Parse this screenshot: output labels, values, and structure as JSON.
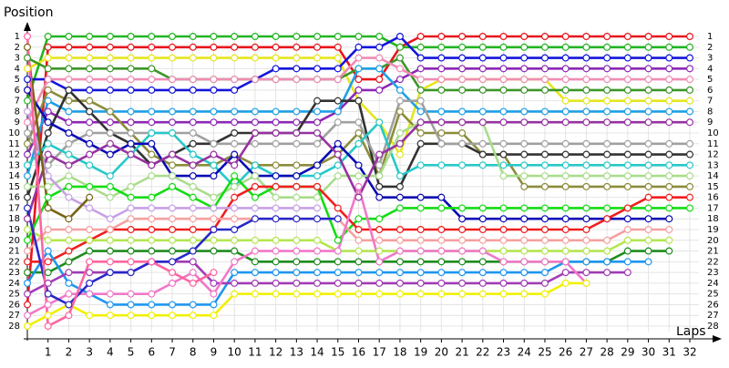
{
  "chart_data": {
    "type": "lap-chart",
    "y_label": "Position",
    "x_label": "Laps",
    "x": [
      0,
      1,
      2,
      3,
      4,
      5,
      6,
      7,
      8,
      9,
      10,
      11,
      12,
      13,
      14,
      15,
      16,
      17,
      18,
      19,
      20,
      21,
      22,
      23,
      24,
      25,
      26,
      27,
      28,
      29,
      30,
      31,
      32
    ],
    "xlim": [
      0,
      32
    ],
    "xticks": [
      1,
      2,
      3,
      4,
      5,
      6,
      7,
      8,
      9,
      10,
      11,
      12,
      13,
      14,
      15,
      16,
      17,
      18,
      19,
      20,
      21,
      22,
      23,
      24,
      25,
      26,
      27,
      28,
      29,
      30,
      31,
      32
    ],
    "ylim": [
      1,
      28
    ],
    "yticks": [
      1,
      2,
      3,
      4,
      5,
      6,
      7,
      8,
      9,
      10,
      11,
      12,
      13,
      14,
      15,
      16,
      17,
      18,
      19,
      20,
      21,
      22,
      23,
      24,
      25,
      26,
      27,
      28
    ],
    "y_inverted": true,
    "grid": true,
    "series": [
      {
        "color": "#e8141c",
        "values": [
          26,
          2,
          2,
          2,
          2,
          2,
          2,
          2,
          2,
          2,
          2,
          2,
          2,
          2,
          2,
          2,
          5,
          5,
          2,
          1,
          1,
          1,
          1,
          1,
          1,
          1,
          1,
          1,
          1,
          1,
          1,
          1,
          1
        ]
      },
      {
        "color": "#22b422",
        "values": [
          7,
          1,
          1,
          1,
          1,
          1,
          1,
          1,
          1,
          1,
          1,
          1,
          1,
          1,
          1,
          1,
          1,
          1,
          2,
          2,
          2,
          2,
          2,
          2,
          2,
          2,
          2,
          2,
          2,
          2,
          2,
          2,
          2
        ]
      },
      {
        "color": "#e6e61e",
        "values": [
          4,
          3,
          3,
          3,
          3,
          3,
          3,
          3,
          3,
          3,
          3,
          3,
          3,
          3,
          3,
          3,
          7,
          9,
          12,
          6,
          5,
          5,
          5,
          5,
          5,
          5,
          7,
          7,
          7,
          7,
          7,
          7,
          7
        ]
      },
      {
        "color": "#1414dc",
        "values": [
          5,
          5,
          6,
          6,
          6,
          6,
          6,
          6,
          6,
          6,
          6,
          5,
          4,
          4,
          4,
          4,
          2,
          2,
          1,
          3,
          3,
          3,
          3,
          3,
          3,
          3,
          3,
          3,
          3,
          3,
          3,
          3,
          3
        ]
      },
      {
        "color": "#8c28b4",
        "values": [
          12,
          8,
          9,
          9,
          9,
          9,
          9,
          9,
          9,
          9,
          9,
          9,
          9,
          9,
          9,
          8,
          6,
          6,
          5,
          4,
          4,
          4,
          4,
          4,
          4,
          4,
          4,
          4,
          4,
          4,
          4,
          4,
          4
        ]
      },
      {
        "color": "#3c9628",
        "values": [
          3,
          4,
          4,
          4,
          4,
          4,
          4,
          5,
          5,
          5,
          5,
          5,
          5,
          5,
          5,
          5,
          4,
          4,
          3,
          6,
          6,
          6,
          6,
          6,
          6,
          6,
          6,
          6,
          6,
          6,
          6,
          6,
          6
        ]
      },
      {
        "color": "#f08cb4",
        "values": [
          9,
          5,
          5,
          5,
          5,
          5,
          5,
          5,
          5,
          5,
          5,
          5,
          5,
          5,
          5,
          5,
          3,
          3,
          4,
          5,
          5,
          5,
          5,
          5,
          5,
          5,
          5,
          5,
          5,
          5,
          5,
          5,
          5
        ]
      },
      {
        "color": "#1ea0e6",
        "values": [
          14,
          7,
          8,
          8,
          8,
          8,
          8,
          8,
          8,
          8,
          8,
          8,
          8,
          8,
          8,
          8,
          4,
          4,
          6,
          8,
          8,
          8,
          8,
          8,
          8,
          8,
          8,
          8,
          8,
          8,
          8,
          8,
          8
        ]
      },
      {
        "color": "#8c8c3c",
        "values": [
          11,
          6,
          7,
          7,
          8,
          10,
          12,
          13,
          13,
          13,
          12,
          13,
          13,
          13,
          13,
          12,
          10,
          14,
          8,
          10,
          10,
          10,
          12,
          12,
          15,
          15,
          15,
          15,
          15,
          15,
          15,
          15,
          15
        ]
      },
      {
        "color": "#323232",
        "values": [
          16,
          10,
          6,
          8,
          10,
          11,
          13,
          12,
          11,
          11,
          10,
          10,
          10,
          10,
          7,
          7,
          7,
          15,
          15,
          11,
          11,
          11,
          12,
          12,
          12,
          12,
          12,
          12,
          12,
          12,
          12,
          12,
          12
        ]
      },
      {
        "color": "#a0a0a0",
        "values": [
          10,
          13,
          11,
          10,
          10,
          10,
          10,
          10,
          10,
          11,
          11,
          11,
          11,
          11,
          11,
          9,
          9,
          13,
          7,
          7,
          11,
          11,
          11,
          11,
          11,
          11,
          11,
          11,
          11,
          11,
          11,
          11,
          11
        ]
      },
      {
        "color": "#28c8c8",
        "values": [
          13,
          11,
          12,
          13,
          14,
          12,
          10,
          10,
          12,
          13,
          15,
          13,
          14,
          14,
          14,
          13,
          11,
          9,
          14,
          13,
          13,
          13,
          13,
          13,
          13,
          13,
          13,
          13,
          13,
          13,
          13,
          13,
          13
        ]
      },
      {
        "color": "#0a0ab4",
        "values": [
          6,
          9,
          10,
          11,
          12,
          11,
          11,
          14,
          14,
          14,
          12,
          14,
          14,
          14,
          13,
          11,
          13,
          16,
          16,
          16,
          16,
          18,
          18,
          18,
          18,
          18,
          18,
          18,
          18,
          18,
          18,
          18,
          null
        ]
      },
      {
        "color": "#aadc8c",
        "values": [
          15,
          15,
          14,
          15,
          16,
          15,
          14,
          14,
          15,
          16,
          15,
          14,
          16,
          16,
          16,
          14,
          14,
          14,
          10,
          9,
          9,
          9,
          9,
          14,
          14,
          14,
          14,
          14,
          14,
          14,
          14,
          14,
          14
        ]
      },
      {
        "color": "#9632a0",
        "values": [
          18,
          12,
          13,
          12,
          11,
          12,
          13,
          12,
          13,
          12,
          13,
          10,
          10,
          10,
          10,
          12,
          16,
          12,
          11,
          9,
          9,
          9,
          9,
          9,
          9,
          9,
          9,
          9,
          9,
          9,
          9,
          9,
          9
        ]
      },
      {
        "color": "#14dc14",
        "values": [
          20,
          16,
          15,
          15,
          15,
          16,
          16,
          15,
          16,
          17,
          14,
          16,
          15,
          15,
          15,
          20,
          18,
          18,
          17,
          17,
          17,
          17,
          17,
          17,
          17,
          17,
          17,
          17,
          17,
          17,
          17,
          17,
          17
        ]
      },
      {
        "color": "#f01e1e",
        "values": [
          22,
          22,
          21,
          20,
          19,
          19,
          19,
          19,
          19,
          19,
          16,
          15,
          15,
          15,
          15,
          17,
          19,
          19,
          19,
          19,
          19,
          19,
          19,
          19,
          19,
          19,
          19,
          19,
          18,
          17,
          16,
          16,
          16
        ]
      },
      {
        "color": "#f5a0a0",
        "values": [
          21,
          19,
          19,
          19,
          19,
          18,
          18,
          18,
          18,
          18,
          18,
          18,
          18,
          18,
          18,
          18,
          20,
          20,
          20,
          20,
          20,
          20,
          20,
          20,
          20,
          20,
          20,
          20,
          20,
          19,
          19,
          19,
          null
        ]
      },
      {
        "color": "#1e8c1e",
        "values": [
          23,
          23,
          22,
          21,
          21,
          21,
          21,
          21,
          21,
          21,
          21,
          22,
          22,
          22,
          22,
          22,
          22,
          22,
          22,
          22,
          22,
          22,
          22,
          22,
          22,
          22,
          22,
          22,
          22,
          21,
          21,
          21,
          null
        ]
      },
      {
        "color": "#b4e650",
        "values": [
          19,
          20,
          20,
          20,
          20,
          20,
          20,
          20,
          20,
          20,
          20,
          20,
          20,
          20,
          20,
          21,
          21,
          21,
          21,
          21,
          21,
          21,
          21,
          21,
          21,
          21,
          21,
          21,
          21,
          20,
          20,
          20,
          null
        ]
      },
      {
        "color": "#1e96f0",
        "values": [
          24,
          21,
          24,
          25,
          26,
          26,
          26,
          26,
          26,
          26,
          23,
          23,
          23,
          23,
          23,
          23,
          23,
          23,
          23,
          23,
          23,
          23,
          23,
          23,
          23,
          23,
          22,
          22,
          22,
          22,
          22,
          null,
          null
        ]
      },
      {
        "color": "#a03cb4",
        "values": [
          25,
          24,
          23,
          23,
          23,
          23,
          22,
          22,
          22,
          24,
          24,
          24,
          24,
          24,
          24,
          24,
          24,
          24,
          24,
          24,
          24,
          24,
          24,
          24,
          24,
          24,
          23,
          23,
          23,
          23,
          null,
          null,
          null
        ]
      },
      {
        "color": "#f078c8",
        "values": [
          27,
          26,
          25,
          25,
          25,
          25,
          25,
          24,
          23,
          25,
          22,
          21,
          21,
          21,
          21,
          21,
          15,
          22,
          21,
          21,
          21,
          21,
          21,
          22,
          22,
          22,
          22,
          24,
          null,
          null,
          null,
          null,
          null
        ]
      },
      {
        "color": "#f0f000",
        "values": [
          28,
          27,
          26,
          27,
          27,
          27,
          27,
          27,
          27,
          27,
          25,
          25,
          25,
          25,
          25,
          25,
          25,
          25,
          25,
          25,
          25,
          25,
          25,
          25,
          25,
          25,
          24,
          24,
          null,
          null,
          null,
          null,
          null
        ]
      },
      {
        "color": "#2828c8",
        "values": [
          17,
          25,
          26,
          24,
          23,
          23,
          22,
          22,
          21,
          19,
          19,
          18,
          18,
          18,
          18,
          18,
          null,
          null,
          null,
          null,
          null,
          null,
          null,
          null,
          null,
          null,
          null,
          null,
          null,
          null,
          null,
          null,
          null
        ]
      },
      {
        "color": "#c8a0e6",
        "values": [
          8,
          14,
          16,
          17,
          18,
          17,
          17,
          17,
          17,
          17,
          17,
          17,
          17,
          17,
          17,
          null,
          null,
          null,
          null,
          null,
          null,
          null,
          null,
          null,
          null,
          null,
          null,
          null,
          null,
          null,
          null,
          null,
          null
        ]
      },
      {
        "color": "#786414",
        "values": [
          2,
          17,
          18,
          16,
          null,
          null,
          null,
          null,
          null,
          null,
          null,
          null,
          null,
          null,
          null,
          null,
          null,
          null,
          null,
          null,
          null,
          null,
          null,
          null,
          null,
          null,
          null,
          null,
          null,
          null,
          null,
          null,
          null
        ]
      },
      {
        "color": "#ff64a0",
        "values": [
          1,
          28,
          27,
          22,
          22,
          22,
          22,
          23,
          24,
          23,
          null,
          null,
          null,
          null,
          null,
          null,
          null,
          null,
          null,
          null,
          null,
          null,
          null,
          null,
          null,
          null,
          null,
          null,
          null,
          null,
          null,
          null,
          null
        ]
      }
    ]
  }
}
